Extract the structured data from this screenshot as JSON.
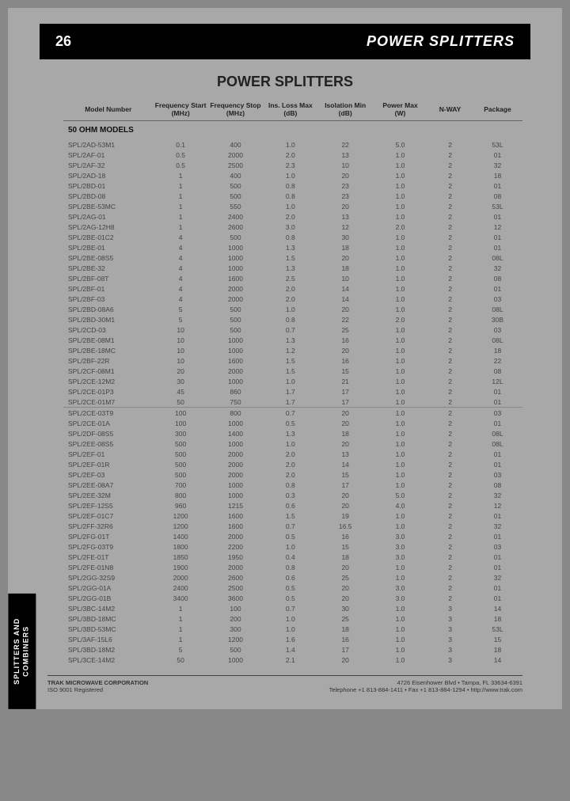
{
  "pageNumber": "26",
  "bannerTitle": "POWER SPLITTERS",
  "sectionTitle": "POWER SPLITTERS",
  "sideTab": "SPLITTERS AND COMBINERS",
  "columns": [
    "Model Number",
    "Frequency Start (MHz)",
    "Frequency Stop (MHz)",
    "Ins. Loss Max (dB)",
    "Isolation Min (dB)",
    "Power Max (W)",
    "N-WAY",
    "Package"
  ],
  "subheader": "50 OHM MODELS",
  "rows": [
    [
      "SPL/2AD-53M1",
      "0.1",
      "400",
      "1.0",
      "22",
      "5.0",
      "2",
      "53L"
    ],
    [
      "SPL/2AF-01",
      "0.5",
      "2000",
      "2.0",
      "13",
      "1.0",
      "2",
      "01"
    ],
    [
      "SPL/2AF-32",
      "0.5",
      "2500",
      "2.3",
      "10",
      "1.0",
      "2",
      "32"
    ],
    [
      "SPL/2AD-18",
      "1",
      "400",
      "1.0",
      "20",
      "1.0",
      "2",
      "18"
    ],
    [
      "SPL/2BD-01",
      "1",
      "500",
      "0.8",
      "23",
      "1.0",
      "2",
      "01"
    ],
    [
      "SPL/2BD-08",
      "1",
      "500",
      "0.8",
      "23",
      "1.0",
      "2",
      "08"
    ],
    [
      "SPL/2BE-53MC",
      "1",
      "550",
      "1.0",
      "20",
      "1.0",
      "2",
      "53L"
    ],
    [
      "SPL/2AG-01",
      "1",
      "2400",
      "2.0",
      "13",
      "1.0",
      "2",
      "01"
    ],
    [
      "SPL/2AG-12H8",
      "1",
      "2600",
      "3.0",
      "12",
      "2.0",
      "2",
      "12"
    ],
    [
      "SPL/2BE-01C2",
      "4",
      "500",
      "0.8",
      "30",
      "1.0",
      "2",
      "01"
    ],
    [
      "SPL/2BE-01",
      "4",
      "1000",
      "1.3",
      "18",
      "1.0",
      "2",
      "01"
    ],
    [
      "SPL/2BE-08S5",
      "4",
      "1000",
      "1.5",
      "20",
      "1.0",
      "2",
      "08L"
    ],
    [
      "SPL/2BE-32",
      "4",
      "1000",
      "1.3",
      "18",
      "1.0",
      "2",
      "32"
    ],
    [
      "SPL/2BF-08T",
      "4",
      "1600",
      "2.5",
      "10",
      "1.0",
      "2",
      "08"
    ],
    [
      "SPL/2BF-01",
      "4",
      "2000",
      "2.0",
      "14",
      "1.0",
      "2",
      "01"
    ],
    [
      "SPL/2BF-03",
      "4",
      "2000",
      "2.0",
      "14",
      "1.0",
      "2",
      "03"
    ],
    [
      "SPL/2BD-08A6",
      "5",
      "500",
      "1.0",
      "20",
      "1.0",
      "2",
      "08L"
    ],
    [
      "SPL/2BD-30M1",
      "5",
      "500",
      "0.8",
      "22",
      "2.0",
      "2",
      "30B"
    ],
    [
      "SPL/2CD-03",
      "10",
      "500",
      "0.7",
      "25",
      "1.0",
      "2",
      "03"
    ],
    [
      "SPL/2BE-08M1",
      "10",
      "1000",
      "1.3",
      "16",
      "1.0",
      "2",
      "08L"
    ],
    [
      "SPL/2BE-18MC",
      "10",
      "1000",
      "1.2",
      "20",
      "1.0",
      "2",
      "18"
    ],
    [
      "SPL/2BF-22R",
      "10",
      "1600",
      "1.5",
      "16",
      "1.0",
      "2",
      "22"
    ],
    [
      "SPL/2CF-08M1",
      "20",
      "2000",
      "1.5",
      "15",
      "1.0",
      "2",
      "08"
    ],
    [
      "SPL/2CE-12M2",
      "30",
      "1000",
      "1.0",
      "21",
      "1.0",
      "2",
      "12L"
    ],
    [
      "SPL/2CE-01P3",
      "45",
      "860",
      "1.7",
      "17",
      "1.0",
      "2",
      "01"
    ],
    [
      "SPL/2CE-01M7",
      "50",
      "750",
      "1.7",
      "17",
      "1.0",
      "2",
      "01"
    ]
  ],
  "rows2": [
    [
      "SPL/2CE-03T9",
      "100",
      "800",
      "0.7",
      "20",
      "1.0",
      "2",
      "03"
    ],
    [
      "SPL/2CE-01A",
      "100",
      "1000",
      "0.5",
      "20",
      "1.0",
      "2",
      "01"
    ],
    [
      "SPL/2DF-08S5",
      "300",
      "1400",
      "1.3",
      "18",
      "1.0",
      "2",
      "08L"
    ],
    [
      "SPL/2EE-08S5",
      "500",
      "1000",
      "1.0",
      "20",
      "1.0",
      "2",
      "08L"
    ],
    [
      "SPL/2EF-01",
      "500",
      "2000",
      "2.0",
      "13",
      "1.0",
      "2",
      "01"
    ],
    [
      "SPL/2EF-01R",
      "500",
      "2000",
      "2.0",
      "14",
      "1.0",
      "2",
      "01"
    ],
    [
      "SPL/2EF-03",
      "500",
      "2000",
      "2.0",
      "15",
      "1.0",
      "2",
      "03"
    ],
    [
      "SPL/2EE-08A7",
      "700",
      "1000",
      "0.8",
      "17",
      "1.0",
      "2",
      "08"
    ],
    [
      "SPL/2EE-32M",
      "800",
      "1000",
      "0.3",
      "20",
      "5.0",
      "2",
      "32"
    ],
    [
      "SPL/2EF-12S5",
      "960",
      "1215",
      "0.6",
      "20",
      "4.0",
      "2",
      "12"
    ],
    [
      "SPL/2EF-01C7",
      "1200",
      "1600",
      "1.5",
      "19",
      "1.0",
      "2",
      "01"
    ],
    [
      "SPL/2FF-32R6",
      "1200",
      "1600",
      "0.7",
      "16.5",
      "1.0",
      "2",
      "32"
    ],
    [
      "SPL/2FG-01T",
      "1400",
      "2000",
      "0.5",
      "16",
      "3.0",
      "2",
      "01"
    ],
    [
      "SPL/2FG-03T9",
      "1800",
      "2200",
      "1.0",
      "15",
      "3.0",
      "2",
      "03"
    ],
    [
      "SPL/2FE-01T",
      "1850",
      "1950",
      "0.4",
      "18",
      "3.0",
      "2",
      "01"
    ],
    [
      "SPL/2FE-01N8",
      "1900",
      "2000",
      "0.8",
      "20",
      "1.0",
      "2",
      "01"
    ],
    [
      "SPL/2GG-32S9",
      "2000",
      "2600",
      "0.6",
      "25",
      "1.0",
      "2",
      "32"
    ],
    [
      "SPL/2GG-01A",
      "2400",
      "2500",
      "0.5",
      "20",
      "3.0",
      "2",
      "01"
    ],
    [
      "SPL/2GG-01B",
      "3400",
      "3600",
      "0.5",
      "20",
      "3.0",
      "2",
      "01"
    ],
    [
      "SPL/3BC-14M2",
      "1",
      "100",
      "0.7",
      "30",
      "1.0",
      "3",
      "14"
    ],
    [
      "SPL/3BD-18MC",
      "1",
      "200",
      "1.0",
      "25",
      "1.0",
      "3",
      "18"
    ],
    [
      "SPL/3BD-53MC",
      "1",
      "300",
      "1.0",
      "18",
      "1.0",
      "3",
      "53L"
    ],
    [
      "SPL/3AF-15L6",
      "1",
      "1200",
      "1.6",
      "16",
      "1.0",
      "3",
      "15"
    ],
    [
      "SPL/3BD-18M2",
      "5",
      "500",
      "1.4",
      "17",
      "1.0",
      "3",
      "18"
    ],
    [
      "SPL/3CE-14M2",
      "50",
      "1000",
      "2.1",
      "20",
      "1.0",
      "3",
      "14"
    ]
  ],
  "footer": {
    "company": "TRAK MICROWAVE CORPORATION",
    "reg": "ISO 9001 Registered",
    "address": "4726 Eisenhower Blvd • Tampa, FL 33634-6391",
    "contact": "Telephone +1 813-884-1411 • Fax +1 813-884-1294 • http://www.trak.com"
  }
}
